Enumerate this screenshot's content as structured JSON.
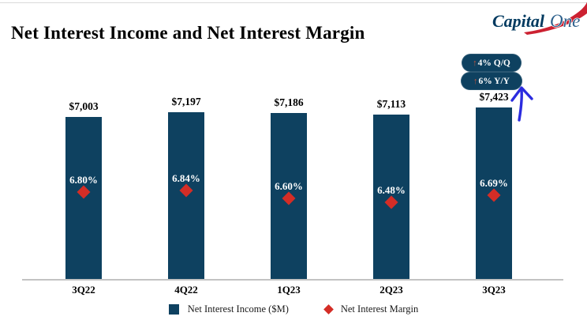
{
  "header": {
    "title": "Net Interest Income and Net Interest Margin",
    "logo": {
      "capital": "Capital",
      "one": "One"
    }
  },
  "badges": [
    {
      "arrow": "↑",
      "label": "4% Q/Q"
    },
    {
      "arrow": "↑",
      "label": "6% Y/Y"
    }
  ],
  "chart_data": {
    "type": "bar",
    "title": "Net Interest Income and Net Interest Margin",
    "categories": [
      "3Q22",
      "4Q22",
      "1Q23",
      "2Q23",
      "3Q23"
    ],
    "series": [
      {
        "name": "Net Interest Income ($M)",
        "type": "bar",
        "values": [
          7003,
          7197,
          7186,
          7113,
          7423
        ],
        "labels": [
          "$7,003",
          "$7,197",
          "$7,186",
          "$7,113",
          "$7,423"
        ],
        "color": "#0E4160"
      },
      {
        "name": "Net Interest Margin",
        "type": "scatter",
        "marker": "diamond",
        "values": [
          6.8,
          6.84,
          6.6,
          6.48,
          6.69
        ],
        "labels": [
          "6.80%",
          "6.84%",
          "6.60%",
          "6.48%",
          "6.69%"
        ],
        "color": "#D42D26"
      }
    ],
    "ylim": [
      0,
      7500
    ],
    "grid": false,
    "legend_position": "bottom",
    "annotations": [
      "↑4% Q/Q",
      "↑6% Y/Y"
    ]
  },
  "colors": {
    "navy": "#0E4160",
    "red": "#D42D26",
    "badge-arrow": "#C2563E",
    "blue-arrow": "#2B2BDF"
  }
}
